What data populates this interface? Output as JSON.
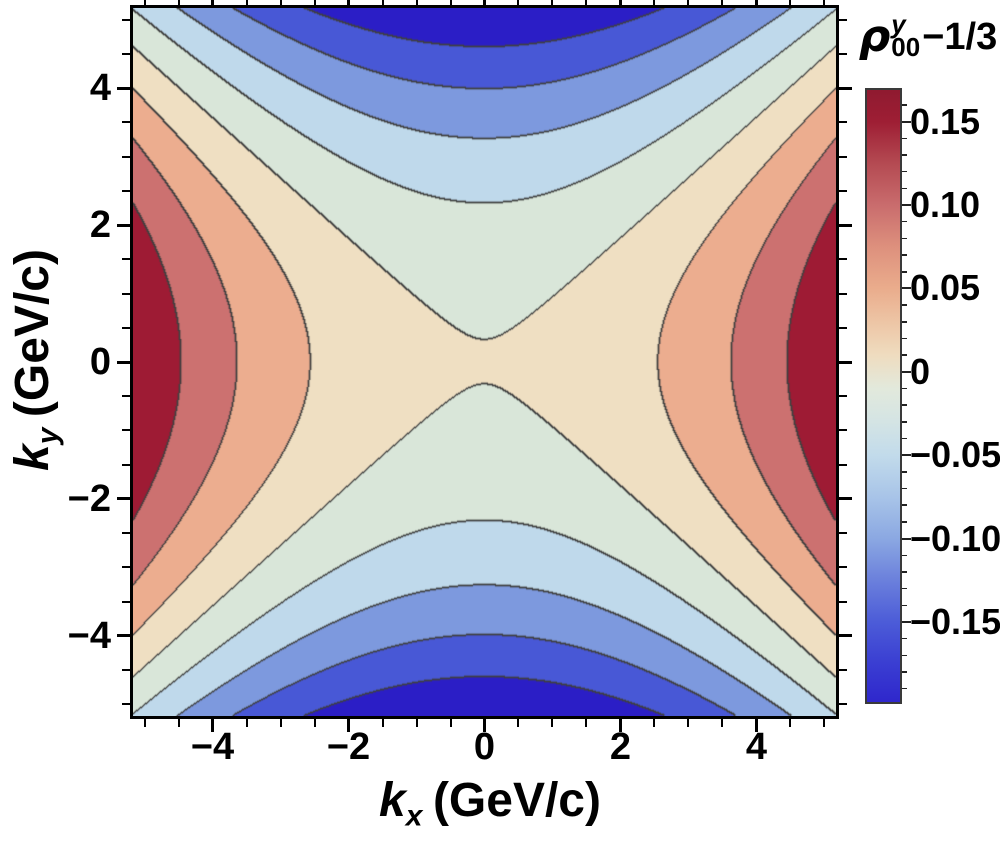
{
  "chart_data": {
    "type": "heatmap",
    "subtype": "filled-contour-plot",
    "title": "",
    "xlabel": {
      "symbol": "k",
      "subscript": "x",
      "units": "(GeV/c)"
    },
    "ylabel": {
      "symbol": "k",
      "subscript": "y",
      "units": "(GeV/c)"
    },
    "x_range": [
      -5.17,
      5.17
    ],
    "y_range": [
      -5.17,
      5.17
    ],
    "x_major_ticks": [
      -4,
      -2,
      0,
      2,
      4
    ],
    "x_tick_labels": [
      "−4",
      "−2",
      "0",
      "2",
      "4"
    ],
    "y_major_ticks": [
      -4,
      -2,
      0,
      2,
      4
    ],
    "y_tick_labels": [
      "−4",
      "−2",
      "0",
      "2",
      "4"
    ],
    "minor_tick_step": 0.5,
    "grid": false,
    "field_model": {
      "description": "saddle field rho00^y - 1/3 ~ ax*kx^2 - ay*ky^2 + c (positive lobes left/right, negative lobes top/bottom)",
      "ax": 0.0075,
      "ay": 0.0095,
      "c": 0.001
    },
    "contour_levels": [
      -0.2,
      -0.15,
      -0.1,
      -0.05,
      0,
      0.05,
      0.1,
      0.15
    ],
    "contour_line_color": "#3f3f3f",
    "bands": [
      {
        "range": [
          -0.25,
          -0.2
        ],
        "color": "#2B1EC6"
      },
      {
        "range": [
          -0.2,
          -0.15
        ],
        "color": "#4858D6"
      },
      {
        "range": [
          -0.15,
          -0.1
        ],
        "color": "#7D99DE"
      },
      {
        "range": [
          -0.1,
          -0.05
        ],
        "color": "#BFD9EB"
      },
      {
        "range": [
          -0.05,
          0.0
        ],
        "color": "#D9E6D9"
      },
      {
        "range": [
          0.0,
          0.05
        ],
        "color": "#EFDFC2"
      },
      {
        "range": [
          0.05,
          0.1
        ],
        "color": "#ECAD8F"
      },
      {
        "range": [
          0.1,
          0.15
        ],
        "color": "#CC7170"
      },
      {
        "range": [
          0.15,
          0.2
        ],
        "color": "#9E1B34"
      }
    ],
    "colorbar": {
      "label": {
        "symbol": "ρ",
        "subscript": "00",
        "superscript": "y",
        "suffix": "−1/3"
      },
      "min": -0.198,
      "max": 0.169,
      "major_ticks": [
        0.15,
        0.1,
        0.05,
        0,
        -0.05,
        -0.1,
        -0.15
      ],
      "tick_labels": [
        "0.15",
        "0.10",
        "0.05",
        "0",
        "−0.05",
        "−0.10",
        "−0.15"
      ],
      "minor_tick_step": 0.01,
      "gradient_stops": [
        [
          0.0,
          "#8F1A30"
        ],
        [
          0.052,
          "#9E1E34"
        ],
        [
          0.12,
          "#B44A52"
        ],
        [
          0.188,
          "#C96C6D"
        ],
        [
          0.256,
          "#DD907D"
        ],
        [
          0.324,
          "#EAAC8C"
        ],
        [
          0.379,
          "#EDC5A5"
        ],
        [
          0.433,
          "#EFDCBF"
        ],
        [
          0.488,
          "#E2E9DC"
        ],
        [
          0.542,
          "#D4E4E4"
        ],
        [
          0.597,
          "#C2DBEB"
        ],
        [
          0.665,
          "#A8C4E8"
        ],
        [
          0.733,
          "#8BA8E2"
        ],
        [
          0.801,
          "#6B80DC"
        ],
        [
          0.869,
          "#4C5CD8"
        ],
        [
          0.937,
          "#3A3ED2"
        ],
        [
          1.0,
          "#2F27CC"
        ]
      ]
    }
  }
}
